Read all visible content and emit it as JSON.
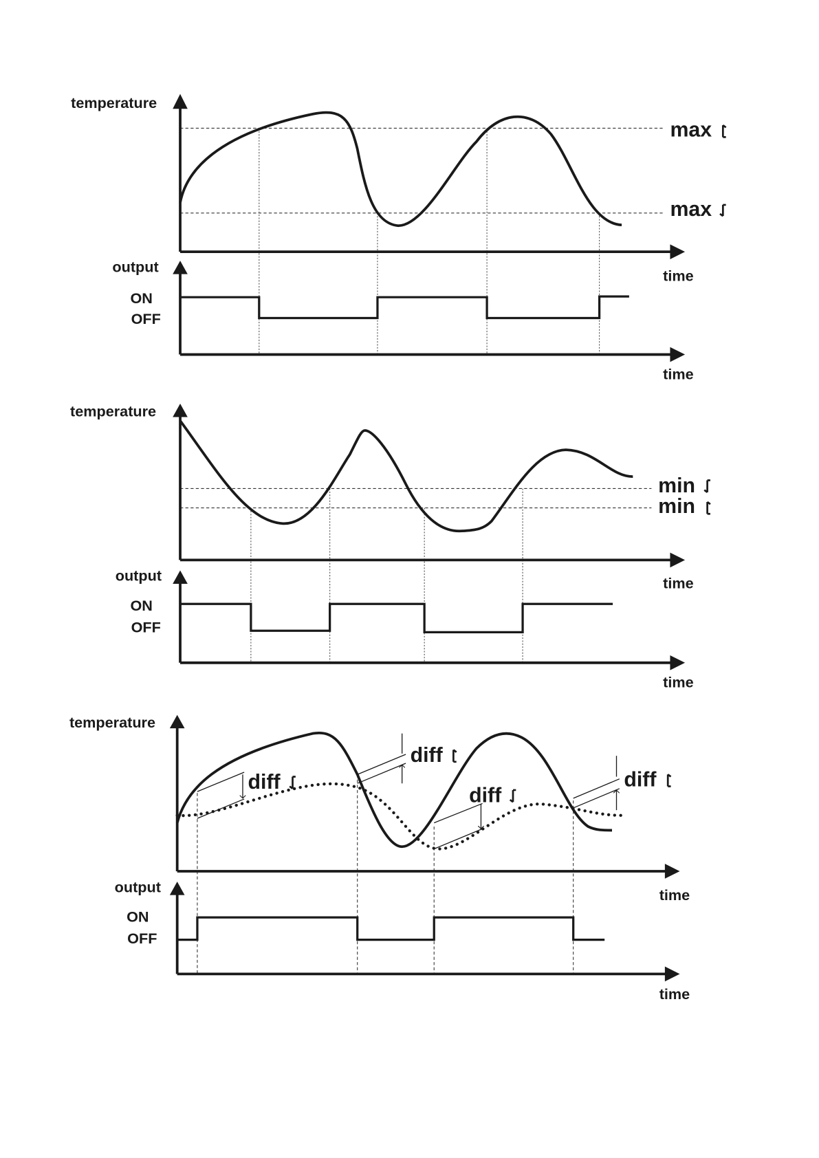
{
  "panels": [
    {
      "temperature_axis": "temperature",
      "time_axis": "time",
      "output_axis": "output",
      "on": "ON",
      "off": "OFF",
      "output_time_axis": "time",
      "thresholds": [
        "max",
        "max"
      ]
    },
    {
      "temperature_axis": "temperature",
      "time_axis": "time",
      "output_axis": "output",
      "on": "ON",
      "off": "OFF",
      "output_time_axis": "time",
      "thresholds": [
        "min",
        "min"
      ]
    },
    {
      "temperature_axis": "temperature",
      "time_axis": "time",
      "output_axis": "output",
      "on": "ON",
      "off": "OFF",
      "output_time_axis": "time",
      "thresholds": [
        "diff",
        "diff",
        "diff",
        "diff"
      ]
    }
  ]
}
